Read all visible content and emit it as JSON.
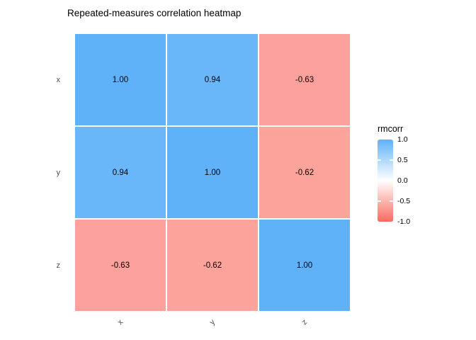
{
  "chart_data": {
    "type": "heatmap",
    "title": "Repeated-measures correlation heatmap",
    "x_categories": [
      "x",
      "y",
      "z"
    ],
    "y_categories": [
      "x",
      "y",
      "z"
    ],
    "matrix": [
      [
        1.0,
        0.94,
        -0.63
      ],
      [
        0.94,
        1.0,
        -0.62
      ],
      [
        -0.63,
        -0.62,
        1.0
      ]
    ],
    "cell_labels": [
      [
        "1.00",
        "0.94",
        "-0.63"
      ],
      [
        "0.94",
        "1.00",
        "-0.62"
      ],
      [
        "-0.63",
        "-0.62",
        "1.00"
      ]
    ],
    "value_limits": [
      -1,
      1
    ],
    "x_tick_angle_deg": 45,
    "grid": false,
    "legend": {
      "title": "rmcorr",
      "position": "right",
      "tick_labels": [
        "1.0",
        "0.5",
        "0.0",
        "-0.5",
        "-1.0"
      ],
      "tick_values": [
        1.0,
        0.5,
        0.0,
        -0.5,
        -1.0
      ],
      "bar_tick_values": [
        0.5,
        -0.5
      ]
    },
    "palette": {
      "high": "#5FB2F8",
      "mid": "#FFFFFF",
      "low": "#FA6A60",
      "axis_text": "#4D4D4D",
      "cell_text": "#000000",
      "background": "#FFFFFF"
    }
  }
}
